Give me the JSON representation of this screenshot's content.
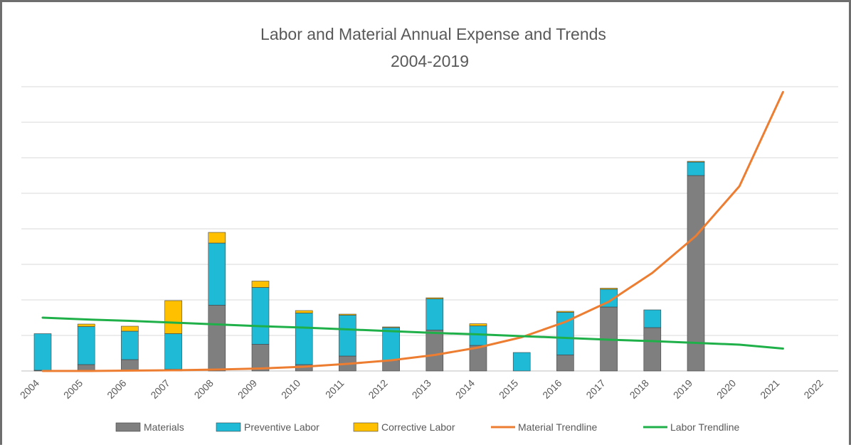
{
  "chart_data": {
    "type": "bar",
    "stacked": true,
    "title": "Labor and Material Annual Expense and Trends",
    "subtitle": "2004-2019",
    "categories": [
      "2004",
      "2005",
      "2006",
      "2007",
      "2008",
      "2009",
      "2010",
      "2011",
      "2012",
      "2013",
      "2014",
      "2015",
      "2016",
      "2017",
      "2018",
      "2019",
      "2020",
      "2021",
      "2022"
    ],
    "ylim": [
      0,
      8
    ],
    "grid": true,
    "y_tick_labels_shown": false,
    "legend_position": "bottom",
    "colors": {
      "Materials": "#7f7f7f",
      "Preventive Labor": "#1fbad6",
      "Corrective Labor": "#ffc000",
      "Material Trendline": "#ed7d31",
      "Labor Trendline": "#1fb04a"
    },
    "series": [
      {
        "name": "Materials",
        "kind": "bar",
        "values": [
          0.02,
          0.18,
          0.32,
          0.05,
          1.85,
          0.75,
          0.18,
          0.42,
          0.3,
          1.15,
          0.72,
          0.0,
          0.45,
          1.8,
          1.22,
          5.5,
          null,
          null,
          null
        ]
      },
      {
        "name": "Preventive Labor",
        "kind": "bar",
        "values": [
          1.03,
          1.07,
          0.8,
          1.0,
          1.75,
          1.6,
          1.45,
          1.15,
          0.92,
          0.88,
          0.55,
          0.52,
          1.2,
          0.5,
          0.5,
          0.38,
          null,
          null,
          null
        ]
      },
      {
        "name": "Corrective Labor",
        "kind": "bar",
        "values": [
          0.0,
          0.07,
          0.14,
          0.93,
          0.3,
          0.18,
          0.07,
          0.03,
          0.02,
          0.03,
          0.06,
          0.0,
          0.03,
          0.03,
          0.0,
          0.02,
          null,
          null,
          null
        ]
      },
      {
        "name": "Material Trendline",
        "kind": "line",
        "values": [
          0.0,
          0.0,
          0.01,
          0.02,
          0.04,
          0.07,
          0.12,
          0.2,
          0.3,
          0.45,
          0.66,
          0.95,
          1.38,
          1.95,
          2.76,
          3.8,
          5.2,
          7.85,
          null
        ]
      },
      {
        "name": "Labor Trendline",
        "kind": "line",
        "values": [
          1.5,
          1.45,
          1.41,
          1.36,
          1.31,
          1.26,
          1.22,
          1.17,
          1.12,
          1.07,
          1.03,
          0.98,
          0.93,
          0.88,
          0.84,
          0.79,
          0.74,
          0.63,
          null
        ]
      }
    ]
  }
}
